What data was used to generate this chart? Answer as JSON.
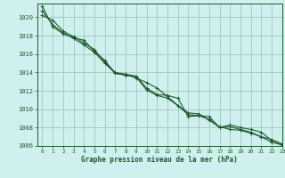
{
  "title": "Graphe pression niveau de la mer (hPa)",
  "background_color": "#cff0ee",
  "grid_color": "#a0c8c0",
  "line_color": "#1a5c28",
  "xlim": [
    -0.5,
    23
  ],
  "ylim": [
    1006,
    1021.5
  ],
  "yticks": [
    1006,
    1008,
    1010,
    1012,
    1014,
    1016,
    1018,
    1020
  ],
  "xticks": [
    0,
    1,
    2,
    3,
    4,
    5,
    6,
    7,
    8,
    9,
    10,
    11,
    12,
    13,
    14,
    15,
    16,
    17,
    18,
    19,
    20,
    21,
    22,
    23
  ],
  "series": [
    [
      1020.2,
      1019.7,
      1018.5,
      1017.9,
      1017.2,
      1016.5,
      1015.1,
      1014.0,
      1013.8,
      1013.6,
      1012.3,
      1011.6,
      1011.5,
      1011.2,
      1009.2,
      1009.3,
      1009.2,
      1008.0,
      1008.3,
      1008.0,
      1007.8,
      1007.5,
      1006.6,
      1006.2
    ],
    [
      1020.7,
      1019.2,
      1018.3,
      1017.7,
      1017.0,
      1016.2,
      1015.0,
      1013.9,
      1013.7,
      1013.5,
      1012.1,
      1011.5,
      1011.2,
      1010.4,
      1009.6,
      1009.5,
      1008.8,
      1008.1,
      1007.8,
      1007.7,
      1007.4,
      1007.0,
      1006.4,
      1006.1
    ],
    [
      1021.2,
      1019.0,
      1018.2,
      1017.8,
      1017.5,
      1016.3,
      1015.3,
      1013.9,
      1013.8,
      1013.4,
      1012.9,
      1012.3,
      1011.4,
      1010.4,
      1009.4,
      1009.3,
      1008.9,
      1008.0,
      1008.1,
      1007.8,
      1007.5,
      1007.0,
      1006.7,
      1006.2
    ]
  ]
}
